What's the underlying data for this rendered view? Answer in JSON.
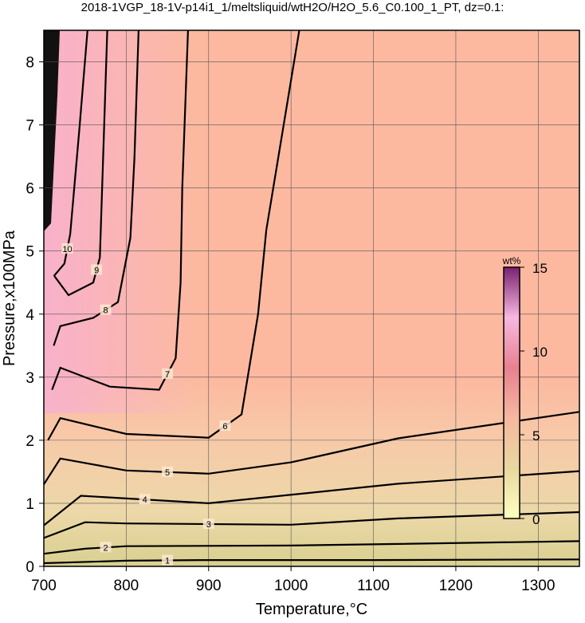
{
  "chart_data": {
    "type": "contour",
    "title": "2018-1VGP_18-1V-p14i1_1/meltsliquid/wtH2O/H2O_5.6_C0.100_1_PT, dz=0.1:",
    "x_label": "Temperature,°C",
    "y_label": "Pressure,x100MPa",
    "xlim": [
      700,
      1350
    ],
    "ylim": [
      0,
      8.5
    ],
    "xticks": [
      700,
      800,
      900,
      1000,
      1100,
      1200,
      1300
    ],
    "yticks": [
      0,
      1,
      2,
      3,
      4,
      5,
      6,
      7,
      8
    ],
    "grid": true,
    "contours": [
      {
        "level": 1,
        "x": [
          700,
          800,
          900,
          1100,
          1350
        ],
        "y": [
          0.05,
          0.09,
          0.1,
          0.1,
          0.11
        ]
      },
      {
        "level": 2,
        "x": [
          700,
          750,
          800,
          1000,
          1350
        ],
        "y": [
          0.2,
          0.28,
          0.32,
          0.33,
          0.4
        ]
      },
      {
        "level": 3,
        "x": [
          700,
          750,
          800,
          1000,
          1130,
          1350
        ],
        "y": [
          0.45,
          0.7,
          0.68,
          0.66,
          0.76,
          0.86
        ]
      },
      {
        "level": 4,
        "x": [
          700,
          745,
          900,
          1130,
          1350
        ],
        "y": [
          0.65,
          1.12,
          1.0,
          1.31,
          1.51
        ]
      },
      {
        "level": 5,
        "x": [
          700,
          720,
          800,
          900,
          1000,
          1130,
          1350
        ],
        "y": [
          1.3,
          1.71,
          1.52,
          1.47,
          1.65,
          2.03,
          2.45
        ]
      },
      {
        "level": 6,
        "x": [
          705,
          720,
          800,
          900,
          940,
          960,
          970,
          1010
        ],
        "y": [
          2.0,
          2.35,
          2.1,
          2.04,
          2.41,
          4.0,
          5.33,
          8.5
        ]
      },
      {
        "level": 7,
        "x": [
          710,
          720,
          780,
          840,
          860,
          866,
          868,
          875
        ],
        "y": [
          2.8,
          3.15,
          2.85,
          2.8,
          3.3,
          4.5,
          6.0,
          8.5
        ]
      },
      {
        "level": 8,
        "x": [
          712,
          720,
          760,
          790,
          805,
          810,
          815
        ],
        "y": [
          3.5,
          3.81,
          3.94,
          4.19,
          5.21,
          6.48,
          8.5
        ]
      },
      {
        "level": 9,
        "x": [
          713,
          730,
          760,
          768,
          772,
          777
        ],
        "y": [
          4.6,
          4.3,
          4.5,
          4.9,
          6.48,
          8.5
        ]
      },
      {
        "level": 10,
        "x": [
          712,
          725,
          732,
          743,
          753
        ],
        "y": [
          4.6,
          4.8,
          5.27,
          6.92,
          8.5
        ]
      }
    ],
    "colorbar": {
      "label": "wt%",
      "lim": [
        0,
        15
      ],
      "ticks": [
        0,
        5,
        10,
        15
      ],
      "colors": [
        "#ffffc0",
        "#e8d8a0",
        "#f6b8a0",
        "#e88090",
        "#f8b8e0",
        "#7a2070"
      ]
    }
  }
}
